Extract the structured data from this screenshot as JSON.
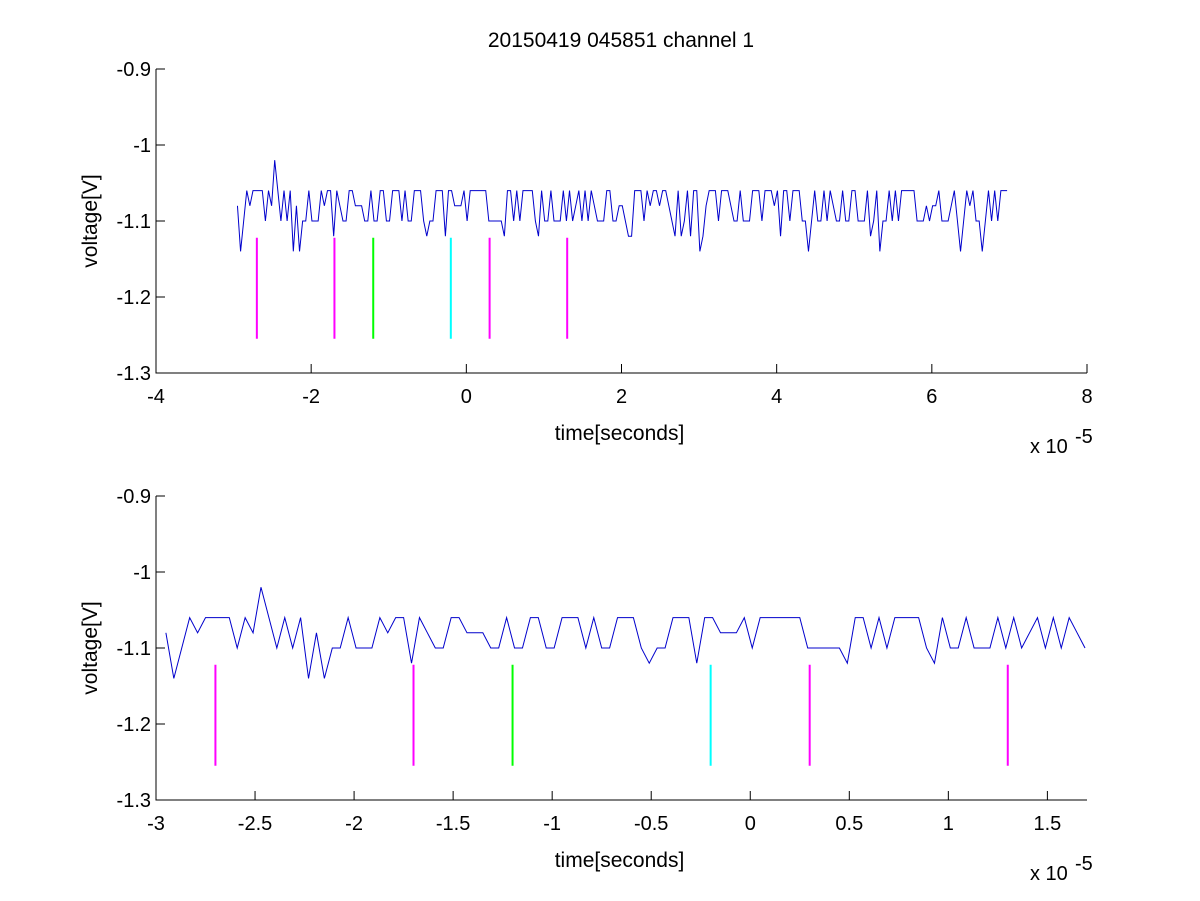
{
  "figure": {
    "title": "20150419 045851 channel 1"
  },
  "chart_data": [
    {
      "type": "line",
      "title": "20150419 045851 channel 1",
      "xlabel": "time[seconds]",
      "ylabel": "voltage[V]",
      "x_exponent_label": "x 10",
      "x_exponent": "-5",
      "xlim": [
        -4,
        8
      ],
      "ylim": [
        -1.3,
        -0.9
      ],
      "x_ticks": [
        -4,
        -2,
        0,
        2,
        4,
        6,
        8
      ],
      "x_tick_labels": [
        "-4",
        "-2",
        "0",
        "2",
        "4",
        "6",
        "8"
      ],
      "y_ticks": [
        -1.3,
        -1.2,
        -1.1,
        -1.0,
        -0.9
      ],
      "y_tick_labels": [
        "-1.3",
        "-1.2",
        "-1.1",
        "-1",
        "-0.9"
      ],
      "grid": false,
      "series": [
        {
          "color": "#0000cc",
          "x_range": [
            -2.95,
            7.0
          ],
          "levels": [
            -1.06,
            -1.08,
            -1.1,
            -1.12,
            -1.14
          ],
          "baseline": -1.1,
          "spike": {
            "x": -2.47,
            "y": -1.02
          }
        }
      ],
      "markers": [
        {
          "x": -2.7,
          "y_top": -1.122,
          "y_bottom": -1.255,
          "color": "#ff00ff"
        },
        {
          "x": -1.7,
          "y_top": -1.122,
          "y_bottom": -1.255,
          "color": "#ff00ff"
        },
        {
          "x": -1.2,
          "y_top": -1.122,
          "y_bottom": -1.255,
          "color": "#00ff00"
        },
        {
          "x": -0.2,
          "y_top": -1.122,
          "y_bottom": -1.255,
          "color": "#00ffff"
        },
        {
          "x": 0.3,
          "y_top": -1.122,
          "y_bottom": -1.255,
          "color": "#ff00ff"
        },
        {
          "x": 1.3,
          "y_top": -1.122,
          "y_bottom": -1.255,
          "color": "#ff00ff"
        }
      ]
    },
    {
      "type": "line",
      "title": "",
      "xlabel": "time[seconds]",
      "ylabel": "voltage[V]",
      "x_exponent_label": "x 10",
      "x_exponent": "-5",
      "xlim": [
        -3.0,
        1.7
      ],
      "ylim": [
        -1.3,
        -0.9
      ],
      "x_ticks": [
        -3,
        -2.5,
        -2,
        -1.5,
        -1,
        -0.5,
        0,
        0.5,
        1,
        1.5
      ],
      "x_tick_labels": [
        "-3",
        "-2.5",
        "-2",
        "-1.5",
        "-1",
        "-0.5",
        "0",
        "0.5",
        "1",
        "1.5"
      ],
      "y_ticks": [
        -1.3,
        -1.2,
        -1.1,
        -1.0,
        -0.9
      ],
      "y_tick_labels": [
        "-1.3",
        "-1.2",
        "-1.1",
        "-1",
        "-0.9"
      ],
      "grid": false,
      "series": [
        {
          "color": "#0000cc",
          "x_range": [
            -2.95,
            1.7
          ],
          "levels": [
            -1.06,
            -1.08,
            -1.1,
            -1.12,
            -1.14
          ],
          "baseline": -1.1,
          "spike": {
            "x": -2.47,
            "y": -1.02
          }
        }
      ],
      "markers": [
        {
          "x": -2.7,
          "y_top": -1.122,
          "y_bottom": -1.255,
          "color": "#ff00ff"
        },
        {
          "x": -1.7,
          "y_top": -1.122,
          "y_bottom": -1.255,
          "color": "#ff00ff"
        },
        {
          "x": -1.2,
          "y_top": -1.122,
          "y_bottom": -1.255,
          "color": "#00ff00"
        },
        {
          "x": -0.2,
          "y_top": -1.122,
          "y_bottom": -1.255,
          "color": "#00ffff"
        },
        {
          "x": 0.3,
          "y_top": -1.122,
          "y_bottom": -1.255,
          "color": "#ff00ff"
        },
        {
          "x": 1.3,
          "y_top": -1.122,
          "y_bottom": -1.255,
          "color": "#ff00ff"
        }
      ]
    }
  ]
}
